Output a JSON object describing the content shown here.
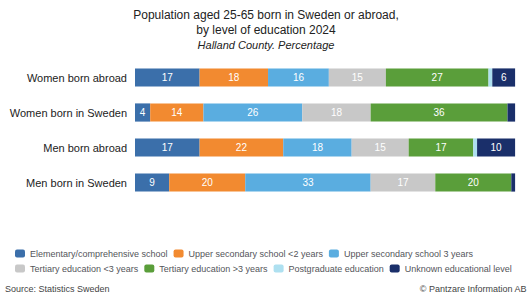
{
  "chart_data": {
    "type": "bar",
    "orientation": "horizontal",
    "stacked": true,
    "title": "Population aged 25-65 born in Sweden or abroad,\nby level of education 2024",
    "subtitle": "Halland County. Percentage",
    "annotations": [
      "Source: Statistics Sweden",
      "© Pantzare Information AB"
    ],
    "categories": [
      "Men born in Sweden",
      "Men born abroad",
      "Women born in Sweden",
      "Women born abroad"
    ],
    "series": [
      {
        "name": "Elementary/comprehensive school",
        "color": "#3b6faa",
        "values": [
          9,
          17,
          4,
          17
        ],
        "value_labels": [
          "9",
          "17",
          "4",
          "17"
        ]
      },
      {
        "name": "Upper secondary school <2 years",
        "color": "#f28a30",
        "values": [
          20,
          22,
          14,
          18
        ],
        "value_labels": [
          "20",
          "22",
          "14",
          "18"
        ]
      },
      {
        "name": "Upper secondary school 3 years",
        "color": "#5aade0",
        "values": [
          33,
          18,
          26,
          16
        ],
        "value_labels": [
          "33",
          "18",
          "26",
          "16"
        ]
      },
      {
        "name": "Tertiary education <3 years",
        "color": "#c8c8c8",
        "values": [
          17,
          15,
          18,
          15
        ],
        "value_labels": [
          "17",
          "15",
          "18",
          "15"
        ]
      },
      {
        "name": "Tertiary education >3 years",
        "color": "#5a9e3a",
        "values": [
          20,
          17,
          36,
          27
        ],
        "value_labels": [
          "20",
          "17",
          "36",
          "27"
        ]
      },
      {
        "name": "Postgraduate education",
        "color": "#aee0f0",
        "values": [
          0,
          1,
          0,
          1
        ],
        "value_labels": [
          null,
          null,
          null,
          null
        ]
      },
      {
        "name": "Unknown educational level",
        "color": "#1a2f6a",
        "values": [
          1,
          10,
          2,
          6
        ],
        "value_labels": [
          null,
          "10",
          null,
          "6"
        ]
      }
    ],
    "xlim": [
      0,
      100.5
    ],
    "data_labels": true,
    "tick_labels": "y",
    "grid": false,
    "legend": "bottom"
  }
}
